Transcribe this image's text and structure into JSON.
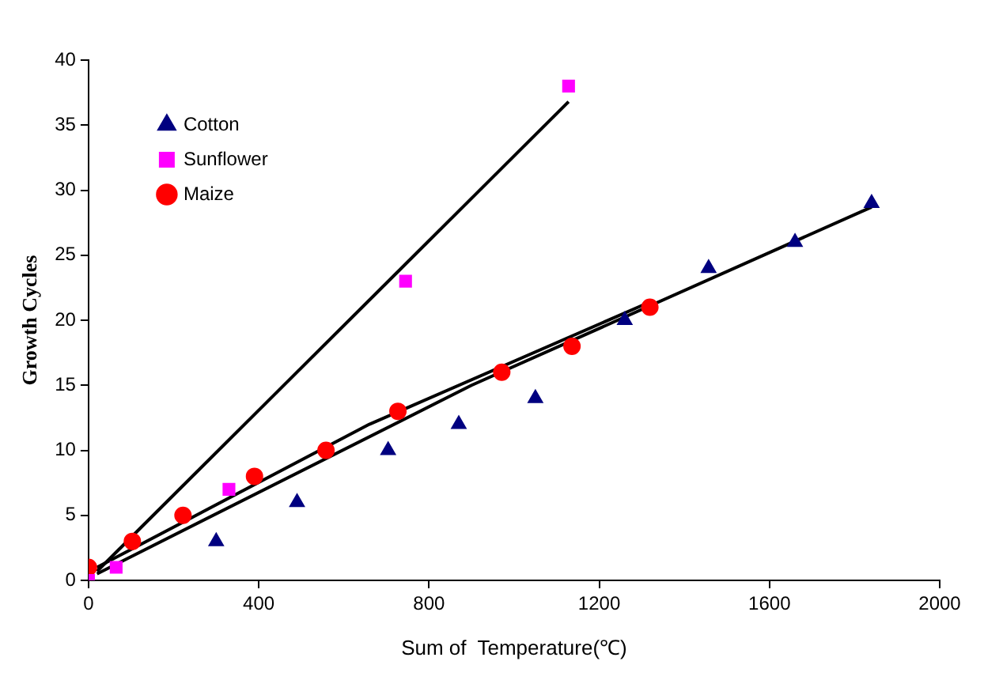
{
  "chart_data": {
    "type": "scatter",
    "xlabel": "Sum of  Temperature(℃)",
    "ylabel": "Growth Cycles",
    "xlim": [
      0,
      2000
    ],
    "xticks": [
      0,
      400,
      800,
      1200,
      1600,
      2000
    ],
    "ylim": [
      0,
      40
    ],
    "yticks": [
      0,
      5,
      10,
      15,
      20,
      25,
      30,
      35,
      40
    ],
    "grid": false,
    "legend": "top left",
    "series": [
      {
        "name": "Cotton",
        "marker": "triangle",
        "color": "#000080",
        "x": [
          300,
          490,
          704,
          870,
          1050,
          1260,
          1457,
          1660,
          1840
        ],
        "values": [
          3,
          6,
          10,
          12,
          14,
          20,
          24,
          26,
          29
        ]
      },
      {
        "name": "Sunflower",
        "marker": "square",
        "color": "#ff00ff",
        "x": [
          0,
          65,
          330,
          745,
          1128
        ],
        "values": [
          0,
          1,
          7,
          23,
          38
        ]
      },
      {
        "name": "Maize",
        "marker": "circle",
        "color": "#ff0000",
        "x": [
          0,
          103,
          222,
          390,
          558,
          727,
          971,
          1136,
          1319
        ],
        "values": [
          1,
          3,
          5,
          8,
          10,
          13,
          16,
          18,
          21
        ]
      },
      {
        "type": "line",
        "marker": "none",
        "color": "#000000",
        "x": [
          20,
          900,
          1840
        ],
        "values": [
          0.5,
          15,
          28.7
        ]
      },
      {
        "type": "line",
        "marker": "none",
        "color": "#000000",
        "x": [
          20,
          1128
        ],
        "values": [
          0.7,
          36.8
        ]
      },
      {
        "type": "line",
        "marker": "none",
        "color": "#000000",
        "x": [
          20,
          660,
          1319
        ],
        "values": [
          1,
          12,
          21.4
        ]
      }
    ]
  }
}
